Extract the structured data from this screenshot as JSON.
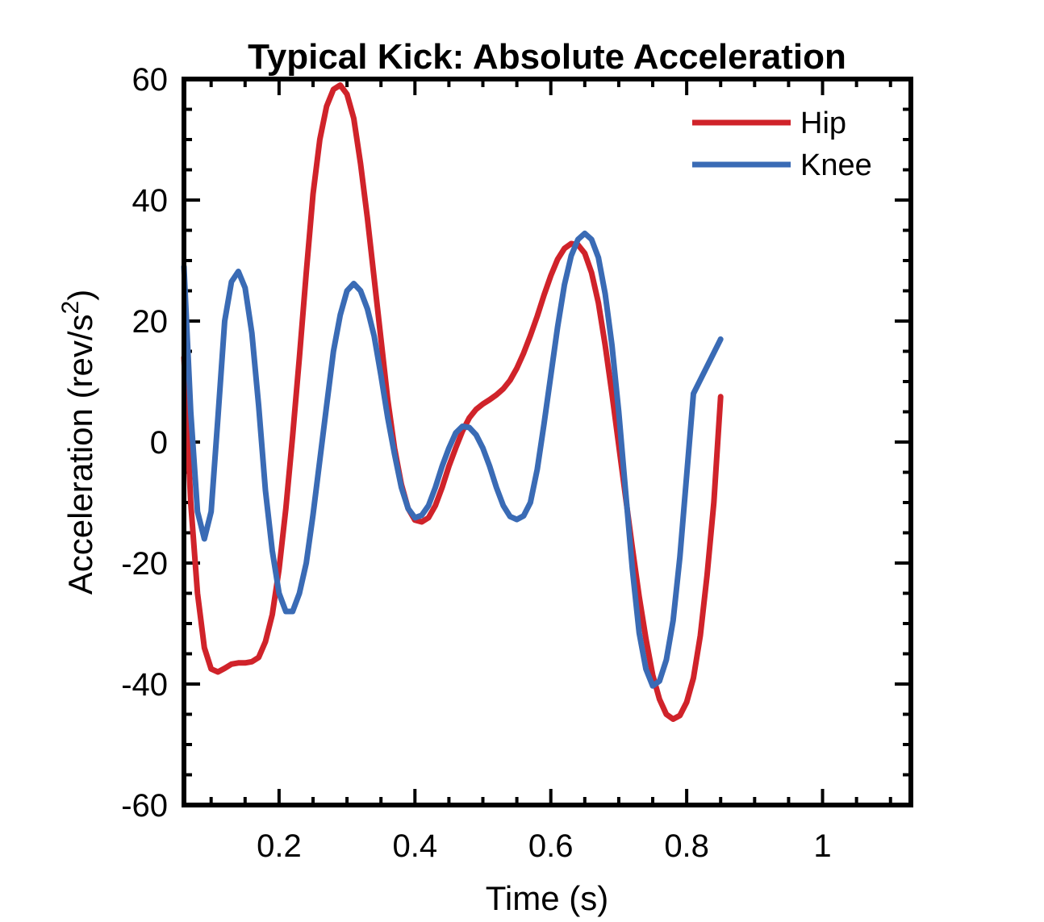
{
  "chart_data": {
    "type": "line",
    "title": "Typical Kick: Absolute Acceleration",
    "xlabel": "Time (s)",
    "ylabel_main": "Acceleration (rev/s",
    "ylabel_sup": "2",
    "ylabel_close": ")",
    "xlim": [
      0.06,
      1.13
    ],
    "ylim": [
      -60,
      60
    ],
    "xticks": [
      0.2,
      0.4,
      0.6,
      0.8,
      1
    ],
    "xtick_labels": [
      "0.2",
      "0.4",
      "0.6",
      "0.8",
      "1"
    ],
    "yticks": [
      -60,
      -40,
      -20,
      0,
      20,
      40,
      60
    ],
    "ytick_labels": [
      "-60",
      "-40",
      "-20",
      "0",
      "20",
      "40",
      "60"
    ],
    "legend_position": "top-right",
    "grid": false,
    "series": [
      {
        "name": "Hip",
        "color": "#D0232A",
        "points": [
          [
            0.06,
            14
          ],
          [
            0.07,
            -10
          ],
          [
            0.08,
            -25
          ],
          [
            0.09,
            -34
          ],
          [
            0.1,
            -37.5
          ],
          [
            0.11,
            -38
          ],
          [
            0.12,
            -37.4
          ],
          [
            0.13,
            -36.7
          ],
          [
            0.14,
            -36.5
          ],
          [
            0.15,
            -36.5
          ],
          [
            0.16,
            -36.3
          ],
          [
            0.17,
            -35.6
          ],
          [
            0.18,
            -33
          ],
          [
            0.19,
            -28.5
          ],
          [
            0.2,
            -21
          ],
          [
            0.21,
            -11
          ],
          [
            0.22,
            1
          ],
          [
            0.23,
            14
          ],
          [
            0.24,
            28
          ],
          [
            0.25,
            41
          ],
          [
            0.26,
            50
          ],
          [
            0.27,
            55.5
          ],
          [
            0.28,
            58.3
          ],
          [
            0.29,
            59
          ],
          [
            0.3,
            57.5
          ],
          [
            0.31,
            53.5
          ],
          [
            0.32,
            46
          ],
          [
            0.33,
            37
          ],
          [
            0.34,
            27
          ],
          [
            0.35,
            17
          ],
          [
            0.36,
            7
          ],
          [
            0.37,
            -1
          ],
          [
            0.38,
            -7
          ],
          [
            0.39,
            -11
          ],
          [
            0.4,
            -12.9
          ],
          [
            0.41,
            -13.2
          ],
          [
            0.42,
            -12.5
          ],
          [
            0.43,
            -10.5
          ],
          [
            0.44,
            -7.5
          ],
          [
            0.45,
            -4
          ],
          [
            0.46,
            -1
          ],
          [
            0.47,
            1.8
          ],
          [
            0.48,
            4
          ],
          [
            0.49,
            5.4
          ],
          [
            0.5,
            6.3
          ],
          [
            0.51,
            7
          ],
          [
            0.52,
            7.8
          ],
          [
            0.53,
            8.8
          ],
          [
            0.54,
            10.2
          ],
          [
            0.55,
            12.2
          ],
          [
            0.56,
            14.7
          ],
          [
            0.57,
            17.6
          ],
          [
            0.58,
            20.8
          ],
          [
            0.59,
            24.3
          ],
          [
            0.6,
            27.5
          ],
          [
            0.61,
            30.2
          ],
          [
            0.62,
            32
          ],
          [
            0.63,
            32.8
          ],
          [
            0.64,
            32.6
          ],
          [
            0.65,
            31.2
          ],
          [
            0.66,
            28
          ],
          [
            0.67,
            23
          ],
          [
            0.68,
            16
          ],
          [
            0.69,
            8
          ],
          [
            0.7,
            -0.5
          ],
          [
            0.71,
            -9
          ],
          [
            0.72,
            -17.5
          ],
          [
            0.73,
            -25.5
          ],
          [
            0.74,
            -32.5
          ],
          [
            0.75,
            -38.5
          ],
          [
            0.76,
            -42.5
          ],
          [
            0.77,
            -45
          ],
          [
            0.78,
            -45.8
          ],
          [
            0.79,
            -45.2
          ],
          [
            0.8,
            -43
          ],
          [
            0.81,
            -39
          ],
          [
            0.82,
            -32
          ],
          [
            0.83,
            -22
          ],
          [
            0.84,
            -10
          ],
          [
            0.85,
            7.5
          ]
        ]
      },
      {
        "name": "Knee",
        "color": "#3A6BB5",
        "points": [
          [
            0.06,
            29
          ],
          [
            0.07,
            5
          ],
          [
            0.08,
            -11.5
          ],
          [
            0.09,
            -16
          ],
          [
            0.1,
            -11.5
          ],
          [
            0.11,
            4
          ],
          [
            0.12,
            20
          ],
          [
            0.13,
            26.5
          ],
          [
            0.14,
            28.2
          ],
          [
            0.15,
            25.5
          ],
          [
            0.16,
            18
          ],
          [
            0.17,
            6
          ],
          [
            0.18,
            -8
          ],
          [
            0.19,
            -18
          ],
          [
            0.2,
            -25
          ],
          [
            0.21,
            -28
          ],
          [
            0.22,
            -28
          ],
          [
            0.23,
            -25
          ],
          [
            0.24,
            -20
          ],
          [
            0.25,
            -12
          ],
          [
            0.26,
            -3
          ],
          [
            0.27,
            6
          ],
          [
            0.28,
            15
          ],
          [
            0.29,
            21
          ],
          [
            0.3,
            25
          ],
          [
            0.31,
            26.2
          ],
          [
            0.32,
            25
          ],
          [
            0.33,
            22
          ],
          [
            0.34,
            17.5
          ],
          [
            0.35,
            11
          ],
          [
            0.36,
            4
          ],
          [
            0.37,
            -2
          ],
          [
            0.38,
            -7.5
          ],
          [
            0.39,
            -11
          ],
          [
            0.4,
            -12.5
          ],
          [
            0.41,
            -12.1
          ],
          [
            0.42,
            -10.5
          ],
          [
            0.43,
            -7.5
          ],
          [
            0.44,
            -4
          ],
          [
            0.45,
            -1
          ],
          [
            0.46,
            1.5
          ],
          [
            0.47,
            2.6
          ],
          [
            0.48,
            2.4
          ],
          [
            0.49,
            1.2
          ],
          [
            0.5,
            -1
          ],
          [
            0.51,
            -4
          ],
          [
            0.52,
            -7.5
          ],
          [
            0.53,
            -10.5
          ],
          [
            0.54,
            -12.3
          ],
          [
            0.55,
            -12.8
          ],
          [
            0.56,
            -12.2
          ],
          [
            0.57,
            -10
          ],
          [
            0.58,
            -4.5
          ],
          [
            0.59,
            3
          ],
          [
            0.6,
            11
          ],
          [
            0.61,
            19
          ],
          [
            0.62,
            26
          ],
          [
            0.63,
            30.8
          ],
          [
            0.64,
            33.5
          ],
          [
            0.65,
            34.5
          ],
          [
            0.66,
            33.5
          ],
          [
            0.67,
            30.5
          ],
          [
            0.68,
            24.5
          ],
          [
            0.69,
            16
          ],
          [
            0.7,
            5
          ],
          [
            0.71,
            -8
          ],
          [
            0.72,
            -21
          ],
          [
            0.73,
            -31.5
          ],
          [
            0.74,
            -37.5
          ],
          [
            0.75,
            -40.3
          ],
          [
            0.76,
            -39.5
          ],
          [
            0.77,
            -36
          ],
          [
            0.78,
            -29.5
          ],
          [
            0.79,
            -19
          ],
          [
            0.8,
            -5.5
          ],
          [
            0.81,
            8
          ],
          [
            0.85,
            17
          ]
        ]
      }
    ]
  }
}
